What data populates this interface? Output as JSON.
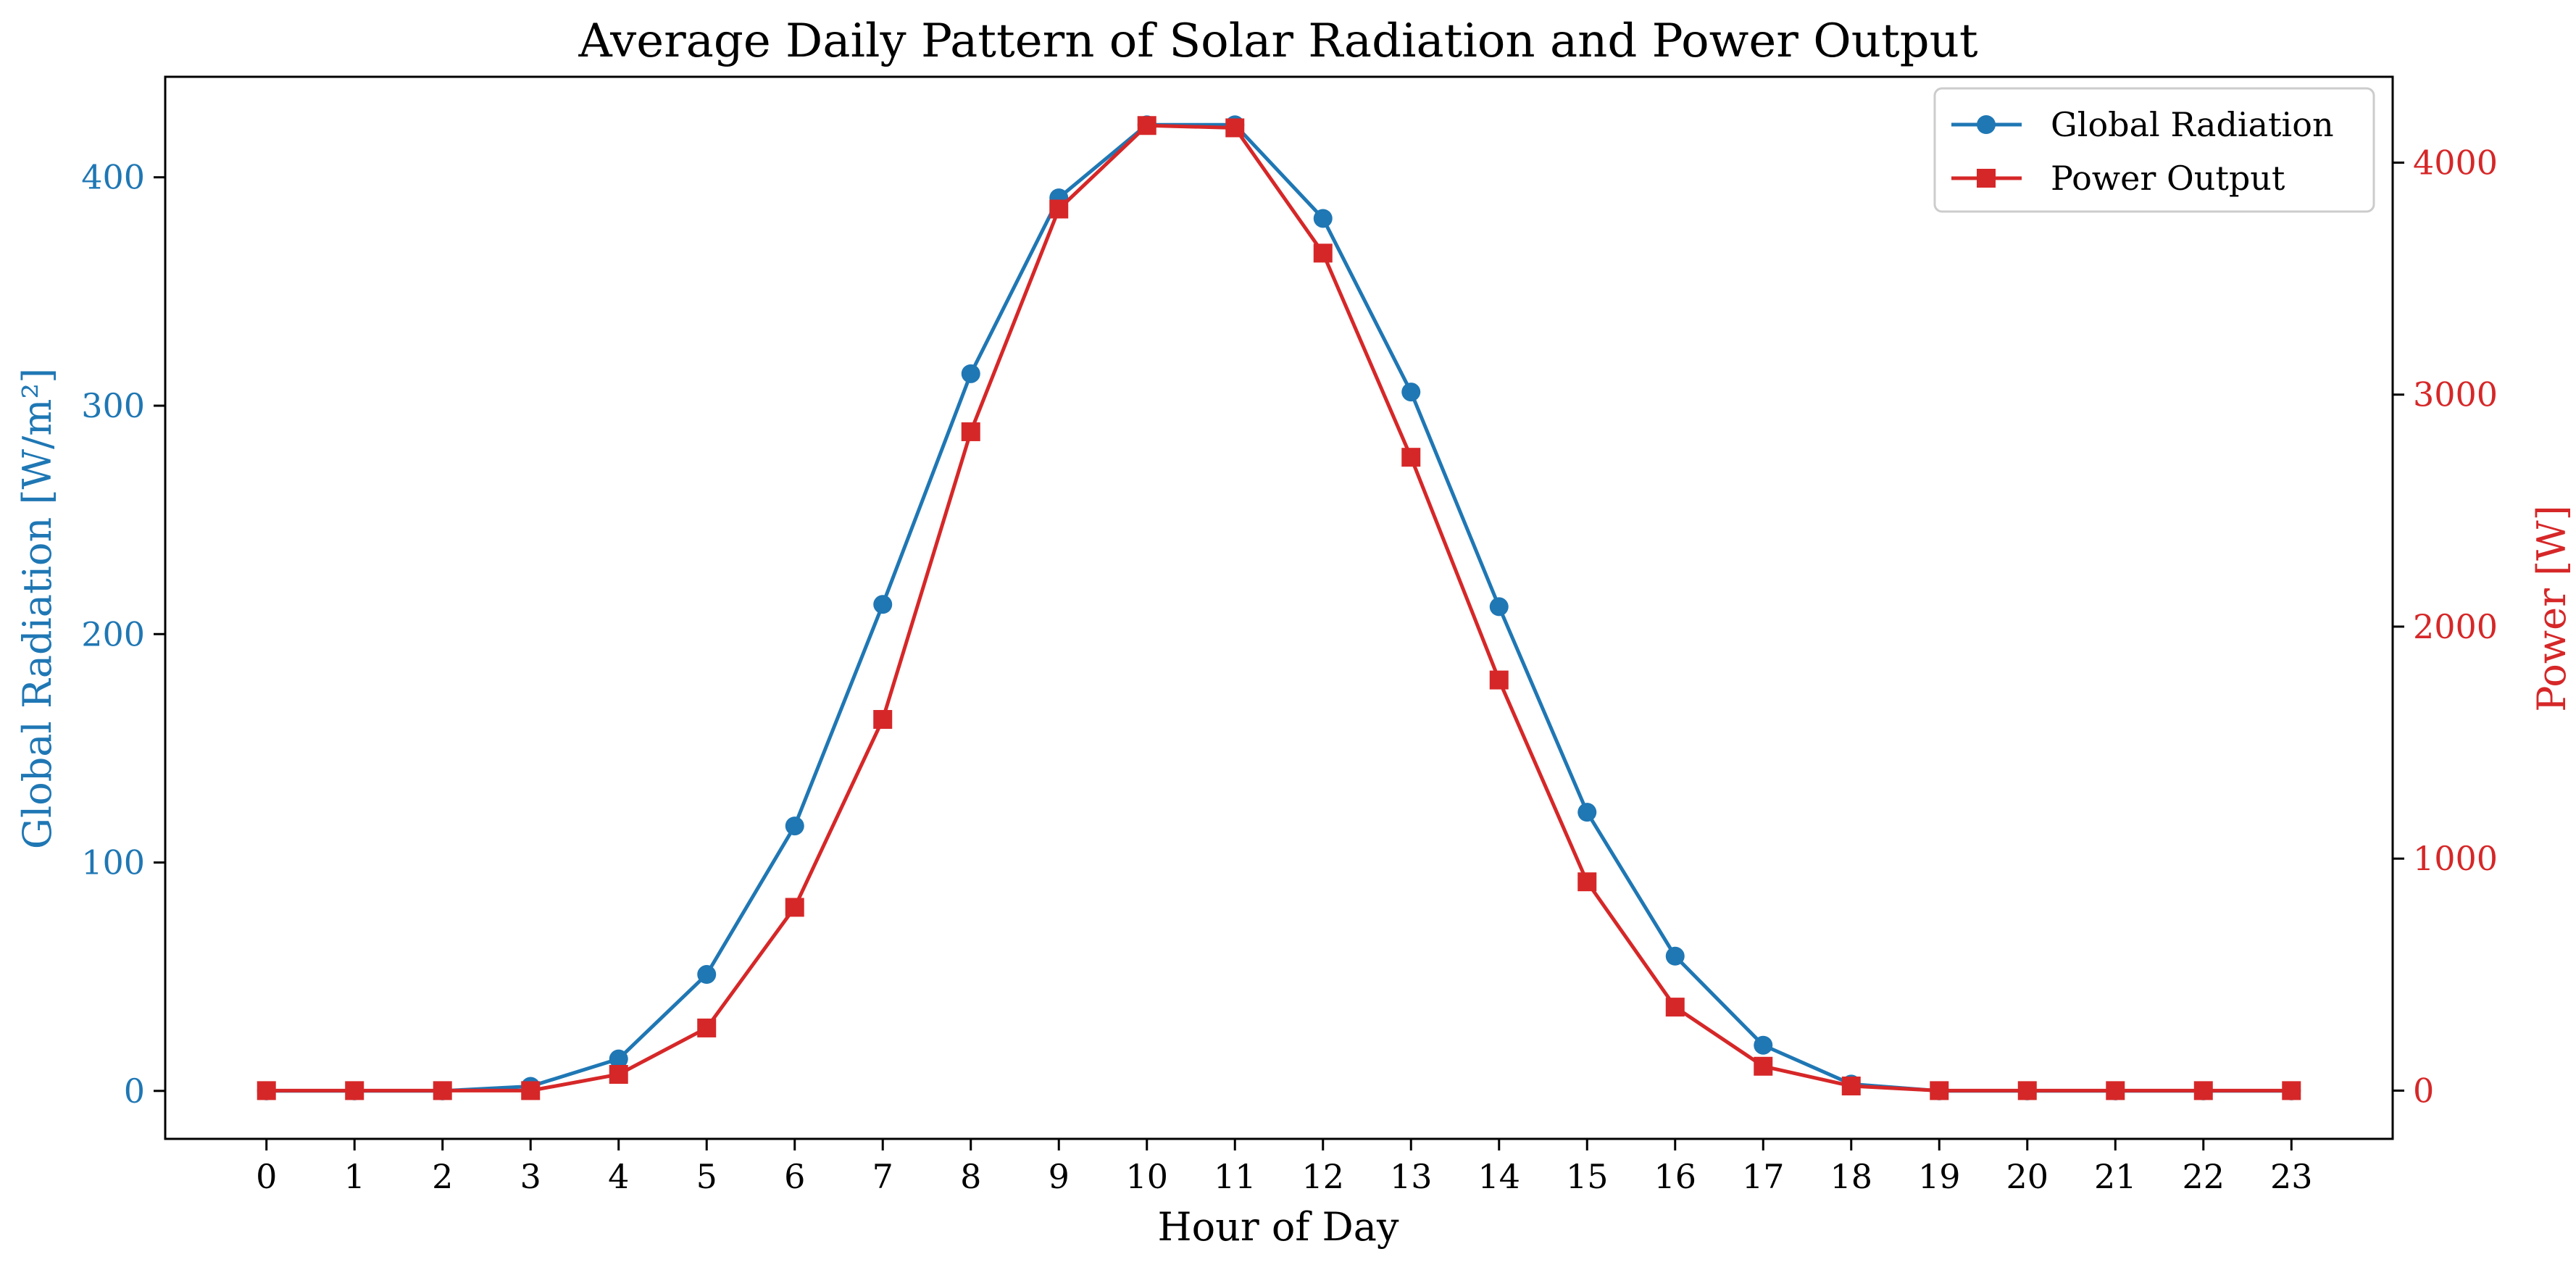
{
  "chart_data": {
    "type": "line",
    "title": "Average Daily Pattern of Solar Radiation and Power Output",
    "xlabel": "Hour of Day",
    "x": [
      0,
      1,
      2,
      3,
      4,
      5,
      6,
      7,
      8,
      9,
      10,
      11,
      12,
      13,
      14,
      15,
      16,
      17,
      18,
      19,
      20,
      21,
      22,
      23
    ],
    "xlim": [
      -1.15,
      24.15
    ],
    "grid": false,
    "legend_position": "top-right",
    "axes": {
      "left": {
        "label": "Global Radiation [W/m²]",
        "color": "#1f77b4",
        "ylim": [
          -21,
          444
        ],
        "ticks": [
          0,
          100,
          200,
          300,
          400
        ]
      },
      "right": {
        "label": "Power [W]",
        "color": "#d62728",
        "ylim": [
          -208,
          4370
        ],
        "ticks": [
          0,
          1000,
          2000,
          3000,
          4000
        ]
      }
    },
    "series": [
      {
        "name": "Global Radiation",
        "axis": "left",
        "color": "#1f77b4",
        "marker": "circle",
        "values": [
          0,
          0,
          0,
          2,
          14,
          51,
          116,
          213,
          314,
          391,
          423,
          423,
          382,
          306,
          212,
          122,
          59,
          20,
          3,
          0,
          0,
          0,
          0,
          0
        ]
      },
      {
        "name": "Power Output",
        "axis": "right",
        "color": "#d62728",
        "marker": "square",
        "values": [
          0,
          0,
          0,
          0,
          70,
          270,
          790,
          1600,
          2840,
          3800,
          4160,
          4150,
          3610,
          2730,
          1770,
          900,
          360,
          105,
          20,
          0,
          0,
          0,
          0,
          0
        ]
      }
    ]
  }
}
